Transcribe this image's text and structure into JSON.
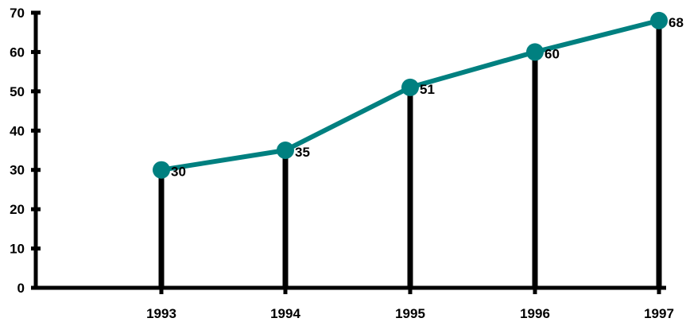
{
  "chart_data": {
    "type": "line",
    "title": "",
    "xlabel": "",
    "ylabel": "",
    "categories": [
      "1993",
      "1994",
      "1995",
      "1996",
      "1997"
    ],
    "series": [
      {
        "values": [
          30,
          35,
          51,
          60,
          68
        ]
      }
    ],
    "data_labels": [
      "30",
      "35",
      "51",
      "60",
      "68"
    ],
    "y_ticks": [
      "0",
      "10",
      "20",
      "30",
      "40",
      "50",
      "60",
      "70"
    ],
    "ylim": [
      0,
      70
    ],
    "drop_lines": true,
    "grid": false,
    "legend": "none",
    "colors": {
      "line": "#008080",
      "marker": "#008080",
      "axis": "#000000",
      "drop_line": "#000000",
      "text": "#000000"
    }
  }
}
